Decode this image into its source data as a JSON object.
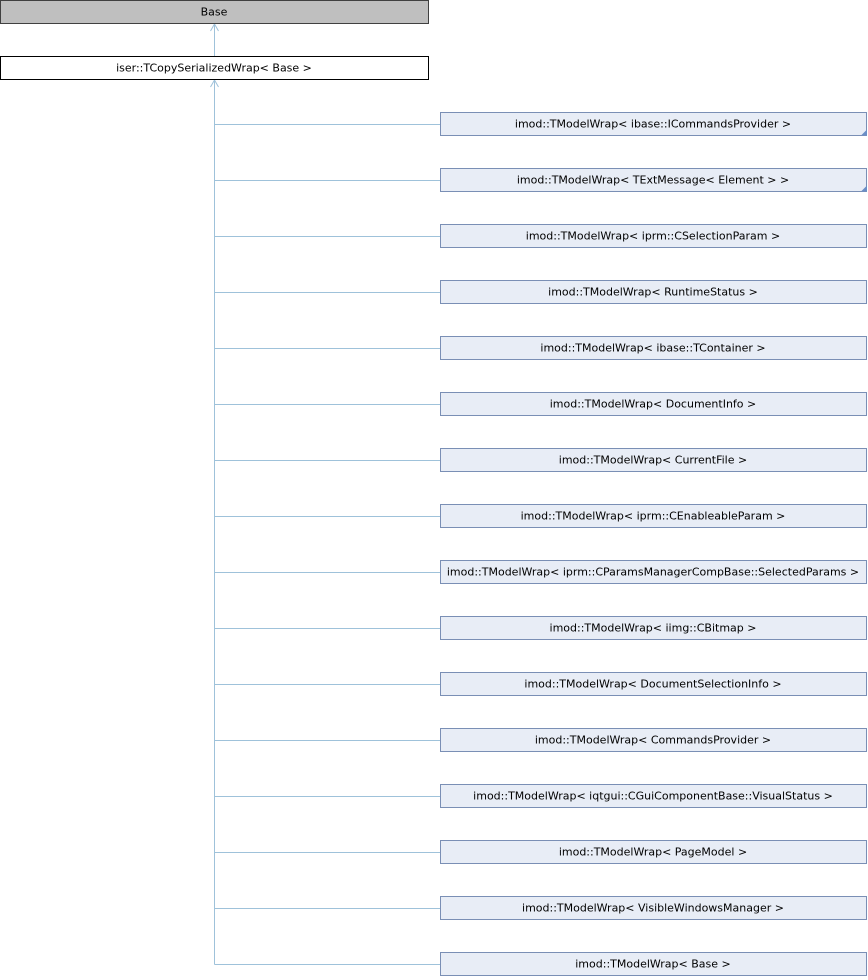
{
  "nodes": [
    {
      "label": "Base"
    },
    {
      "label": "iser::TCopySerializedWrap< Base >"
    }
  ],
  "children": [
    {
      "label": "imod::TModelWrap< ibase::ICommandsProvider >",
      "truncated": true
    },
    {
      "label": "imod::TModelWrap< TExtMessage< Element > >",
      "truncated": true
    },
    {
      "label": "imod::TModelWrap< iprm::CSelectionParam >"
    },
    {
      "label": "imod::TModelWrap< RuntimeStatus >"
    },
    {
      "label": "imod::TModelWrap< ibase::TContainer >"
    },
    {
      "label": "imod::TModelWrap< DocumentInfo >"
    },
    {
      "label": "imod::TModelWrap< CurrentFile >"
    },
    {
      "label": "imod::TModelWrap< iprm::CEnableableParam >"
    },
    {
      "label": "imod::TModelWrap< iprm::CParamsManagerCompBase::SelectedParams >"
    },
    {
      "label": "imod::TModelWrap< iimg::CBitmap >"
    },
    {
      "label": "imod::TModelWrap< DocumentSelectionInfo >"
    },
    {
      "label": "imod::TModelWrap< CommandsProvider >"
    },
    {
      "label": "imod::TModelWrap< iqtgui::CGuiComponentBase::VisualStatus >"
    },
    {
      "label": "imod::TModelWrap< PageModel >"
    },
    {
      "label": "imod::TModelWrap< VisibleWindowsManager >"
    },
    {
      "label": "imod::TModelWrap< Base >"
    }
  ]
}
